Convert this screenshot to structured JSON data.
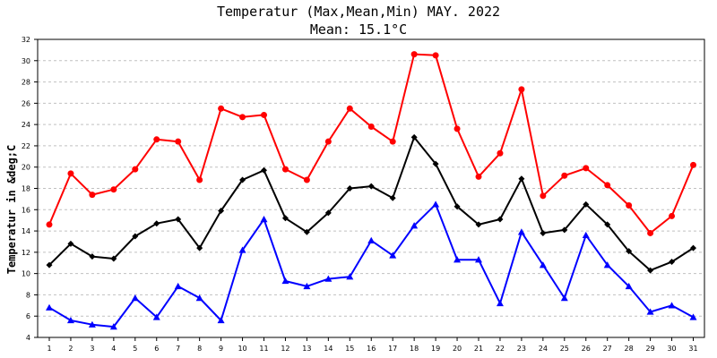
{
  "chart_data": {
    "type": "line",
    "title": "Temperatur (Max,Mean,Min) MAY. 2022",
    "subtitle": "Mean: 15.1°C",
    "xlabel": "",
    "ylabel": "Temperatur in &deg;C",
    "ylim": [
      4,
      32
    ],
    "yticks": [
      4,
      6,
      8,
      10,
      12,
      14,
      16,
      18,
      20,
      22,
      24,
      26,
      28,
      30,
      32
    ],
    "grid": true,
    "x": [
      1,
      2,
      3,
      4,
      5,
      6,
      7,
      8,
      9,
      10,
      11,
      12,
      13,
      14,
      15,
      16,
      17,
      18,
      19,
      20,
      21,
      22,
      23,
      24,
      25,
      26,
      27,
      28,
      29,
      30,
      31
    ],
    "series": [
      {
        "name": "Max",
        "color": "#ff0000",
        "marker": "circle",
        "values": [
          14.6,
          19.4,
          17.4,
          17.9,
          19.8,
          22.6,
          22.4,
          18.8,
          25.5,
          24.7,
          24.9,
          19.8,
          18.8,
          22.4,
          25.5,
          23.8,
          22.4,
          30.6,
          30.5,
          23.6,
          19.1,
          21.3,
          27.3,
          17.3,
          19.2,
          19.9,
          18.3,
          16.4,
          13.8,
          15.4,
          20.2
        ]
      },
      {
        "name": "Mean",
        "color": "#000000",
        "marker": "diamond",
        "values": [
          10.8,
          12.8,
          11.6,
          11.4,
          13.5,
          14.7,
          15.1,
          12.4,
          15.9,
          18.8,
          19.7,
          15.2,
          13.9,
          15.7,
          18.0,
          18.2,
          17.1,
          22.8,
          20.3,
          16.3,
          14.6,
          15.1,
          18.9,
          13.8,
          14.1,
          16.5,
          14.6,
          12.1,
          10.3,
          11.1,
          12.4
        ]
      },
      {
        "name": "Min",
        "color": "#0000ff",
        "marker": "triangle",
        "values": [
          6.8,
          5.6,
          5.2,
          5.0,
          7.7,
          5.9,
          8.8,
          7.7,
          5.6,
          12.2,
          15.1,
          9.3,
          8.8,
          9.5,
          9.7,
          13.1,
          11.7,
          14.5,
          16.5,
          11.3,
          11.3,
          7.2,
          13.9,
          10.8,
          7.7,
          13.6,
          10.8,
          8.8,
          6.4,
          7.0,
          5.9
        ]
      }
    ]
  }
}
